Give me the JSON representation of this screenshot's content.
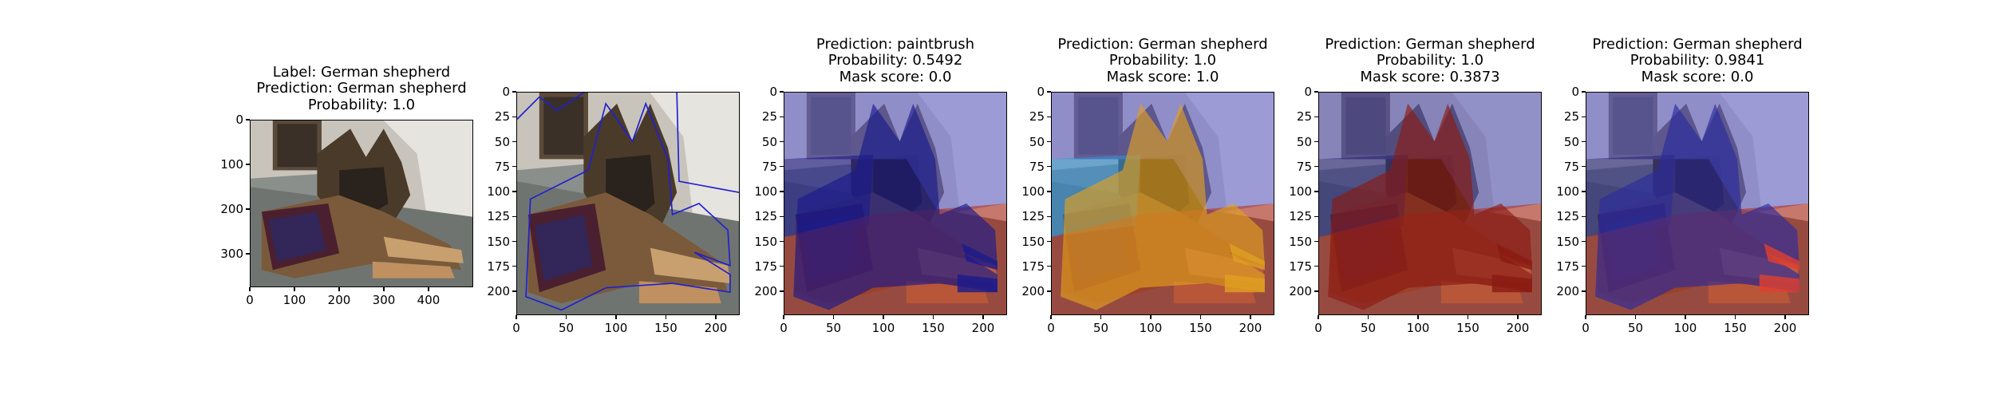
{
  "panels": [
    {
      "title_lines": [
        "Label: German shepherd",
        "Prediction: German shepherd",
        "Probability: 1.0"
      ],
      "x_ticks": [
        "0",
        "100",
        "200",
        "300",
        "400"
      ],
      "y_ticks": [
        "0",
        "100",
        "200",
        "300"
      ],
      "x_tick_values": [
        0,
        100,
        200,
        300,
        400
      ],
      "y_tick_values": [
        0,
        100,
        200,
        300
      ],
      "x_range": [
        0,
        500
      ],
      "y_range": [
        0,
        375
      ],
      "overlay": "none"
    },
    {
      "title_lines": [],
      "x_ticks": [
        "0",
        "50",
        "100",
        "150",
        "200"
      ],
      "y_ticks": [
        "0",
        "25",
        "50",
        "75",
        "100",
        "125",
        "150",
        "175",
        "200"
      ],
      "x_tick_values": [
        0,
        50,
        100,
        150,
        200
      ],
      "y_tick_values": [
        0,
        25,
        50,
        75,
        100,
        125,
        150,
        175,
        200
      ],
      "x_range": [
        0,
        224
      ],
      "y_range": [
        0,
        224
      ],
      "overlay": "outline"
    },
    {
      "title_lines": [
        "Prediction: paintbrush",
        "Probability: 0.5492",
        "Mask score: 0.0"
      ],
      "x_ticks": [
        "0",
        "50",
        "100",
        "150",
        "200"
      ],
      "y_ticks": [
        "0",
        "25",
        "50",
        "75",
        "100",
        "125",
        "150",
        "175",
        "200"
      ],
      "x_tick_values": [
        0,
        50,
        100,
        150,
        200
      ],
      "y_tick_values": [
        0,
        25,
        50,
        75,
        100,
        125,
        150,
        175,
        200
      ],
      "x_range": [
        0,
        224
      ],
      "y_range": [
        0,
        224
      ],
      "overlay": "mask",
      "mask_colors": {
        "dog": "#1a1a8c",
        "floor": "#b3301f",
        "wall": "#6a6ad0",
        "left": "#1a1a8c"
      }
    },
    {
      "title_lines": [
        "Prediction: German shepherd",
        "Probability: 1.0",
        "Mask score: 1.0"
      ],
      "x_ticks": [
        "0",
        "50",
        "100",
        "150",
        "200"
      ],
      "y_ticks": [
        "0",
        "25",
        "50",
        "75",
        "100",
        "125",
        "150",
        "175",
        "200"
      ],
      "x_tick_values": [
        0,
        50,
        100,
        150,
        200
      ],
      "y_tick_values": [
        0,
        25,
        50,
        75,
        100,
        125,
        150,
        175,
        200
      ],
      "x_range": [
        0,
        224
      ],
      "y_range": [
        0,
        224
      ],
      "overlay": "mask",
      "mask_colors": {
        "dog": "#e0a020",
        "floor": "#b3301f",
        "wall": "#6a6ad0",
        "left": "#2f8fd6"
      }
    },
    {
      "title_lines": [
        "Prediction: German shepherd",
        "Probability: 1.0",
        "Mask score: 0.3873"
      ],
      "x_ticks": [
        "0",
        "50",
        "100",
        "150",
        "200"
      ],
      "y_ticks": [
        "0",
        "25",
        "50",
        "75",
        "100",
        "125",
        "150",
        "175",
        "200"
      ],
      "x_tick_values": [
        0,
        50,
        100,
        150,
        200
      ],
      "y_tick_values": [
        0,
        25,
        50,
        75,
        100,
        125,
        150,
        175,
        200
      ],
      "x_range": [
        0,
        224
      ],
      "y_range": [
        0,
        224
      ],
      "overlay": "mask",
      "mask_colors": {
        "dog": "#8a1a12",
        "floor": "#b3301f",
        "wall": "#5a5ab8",
        "left": "#2a2a80"
      }
    },
    {
      "title_lines": [
        "Prediction: German shepherd",
        "Probability: 0.9841",
        "Mask score: 0.0"
      ],
      "x_ticks": [
        "0",
        "50",
        "100",
        "150",
        "200"
      ],
      "y_ticks": [
        "0",
        "25",
        "50",
        "75",
        "100",
        "125",
        "150",
        "175",
        "200"
      ],
      "x_tick_values": [
        0,
        50,
        100,
        150,
        200
      ],
      "y_tick_values": [
        0,
        25,
        50,
        75,
        100,
        125,
        150,
        175,
        200
      ],
      "x_range": [
        0,
        224
      ],
      "y_range": [
        0,
        224
      ],
      "overlay": "mask",
      "mask_colors": {
        "dog": "#2b2b9e",
        "floor": "#b3301f",
        "wall": "#6a6ad0",
        "left": "#2a2a80",
        "paws": "#e04030"
      }
    }
  ]
}
